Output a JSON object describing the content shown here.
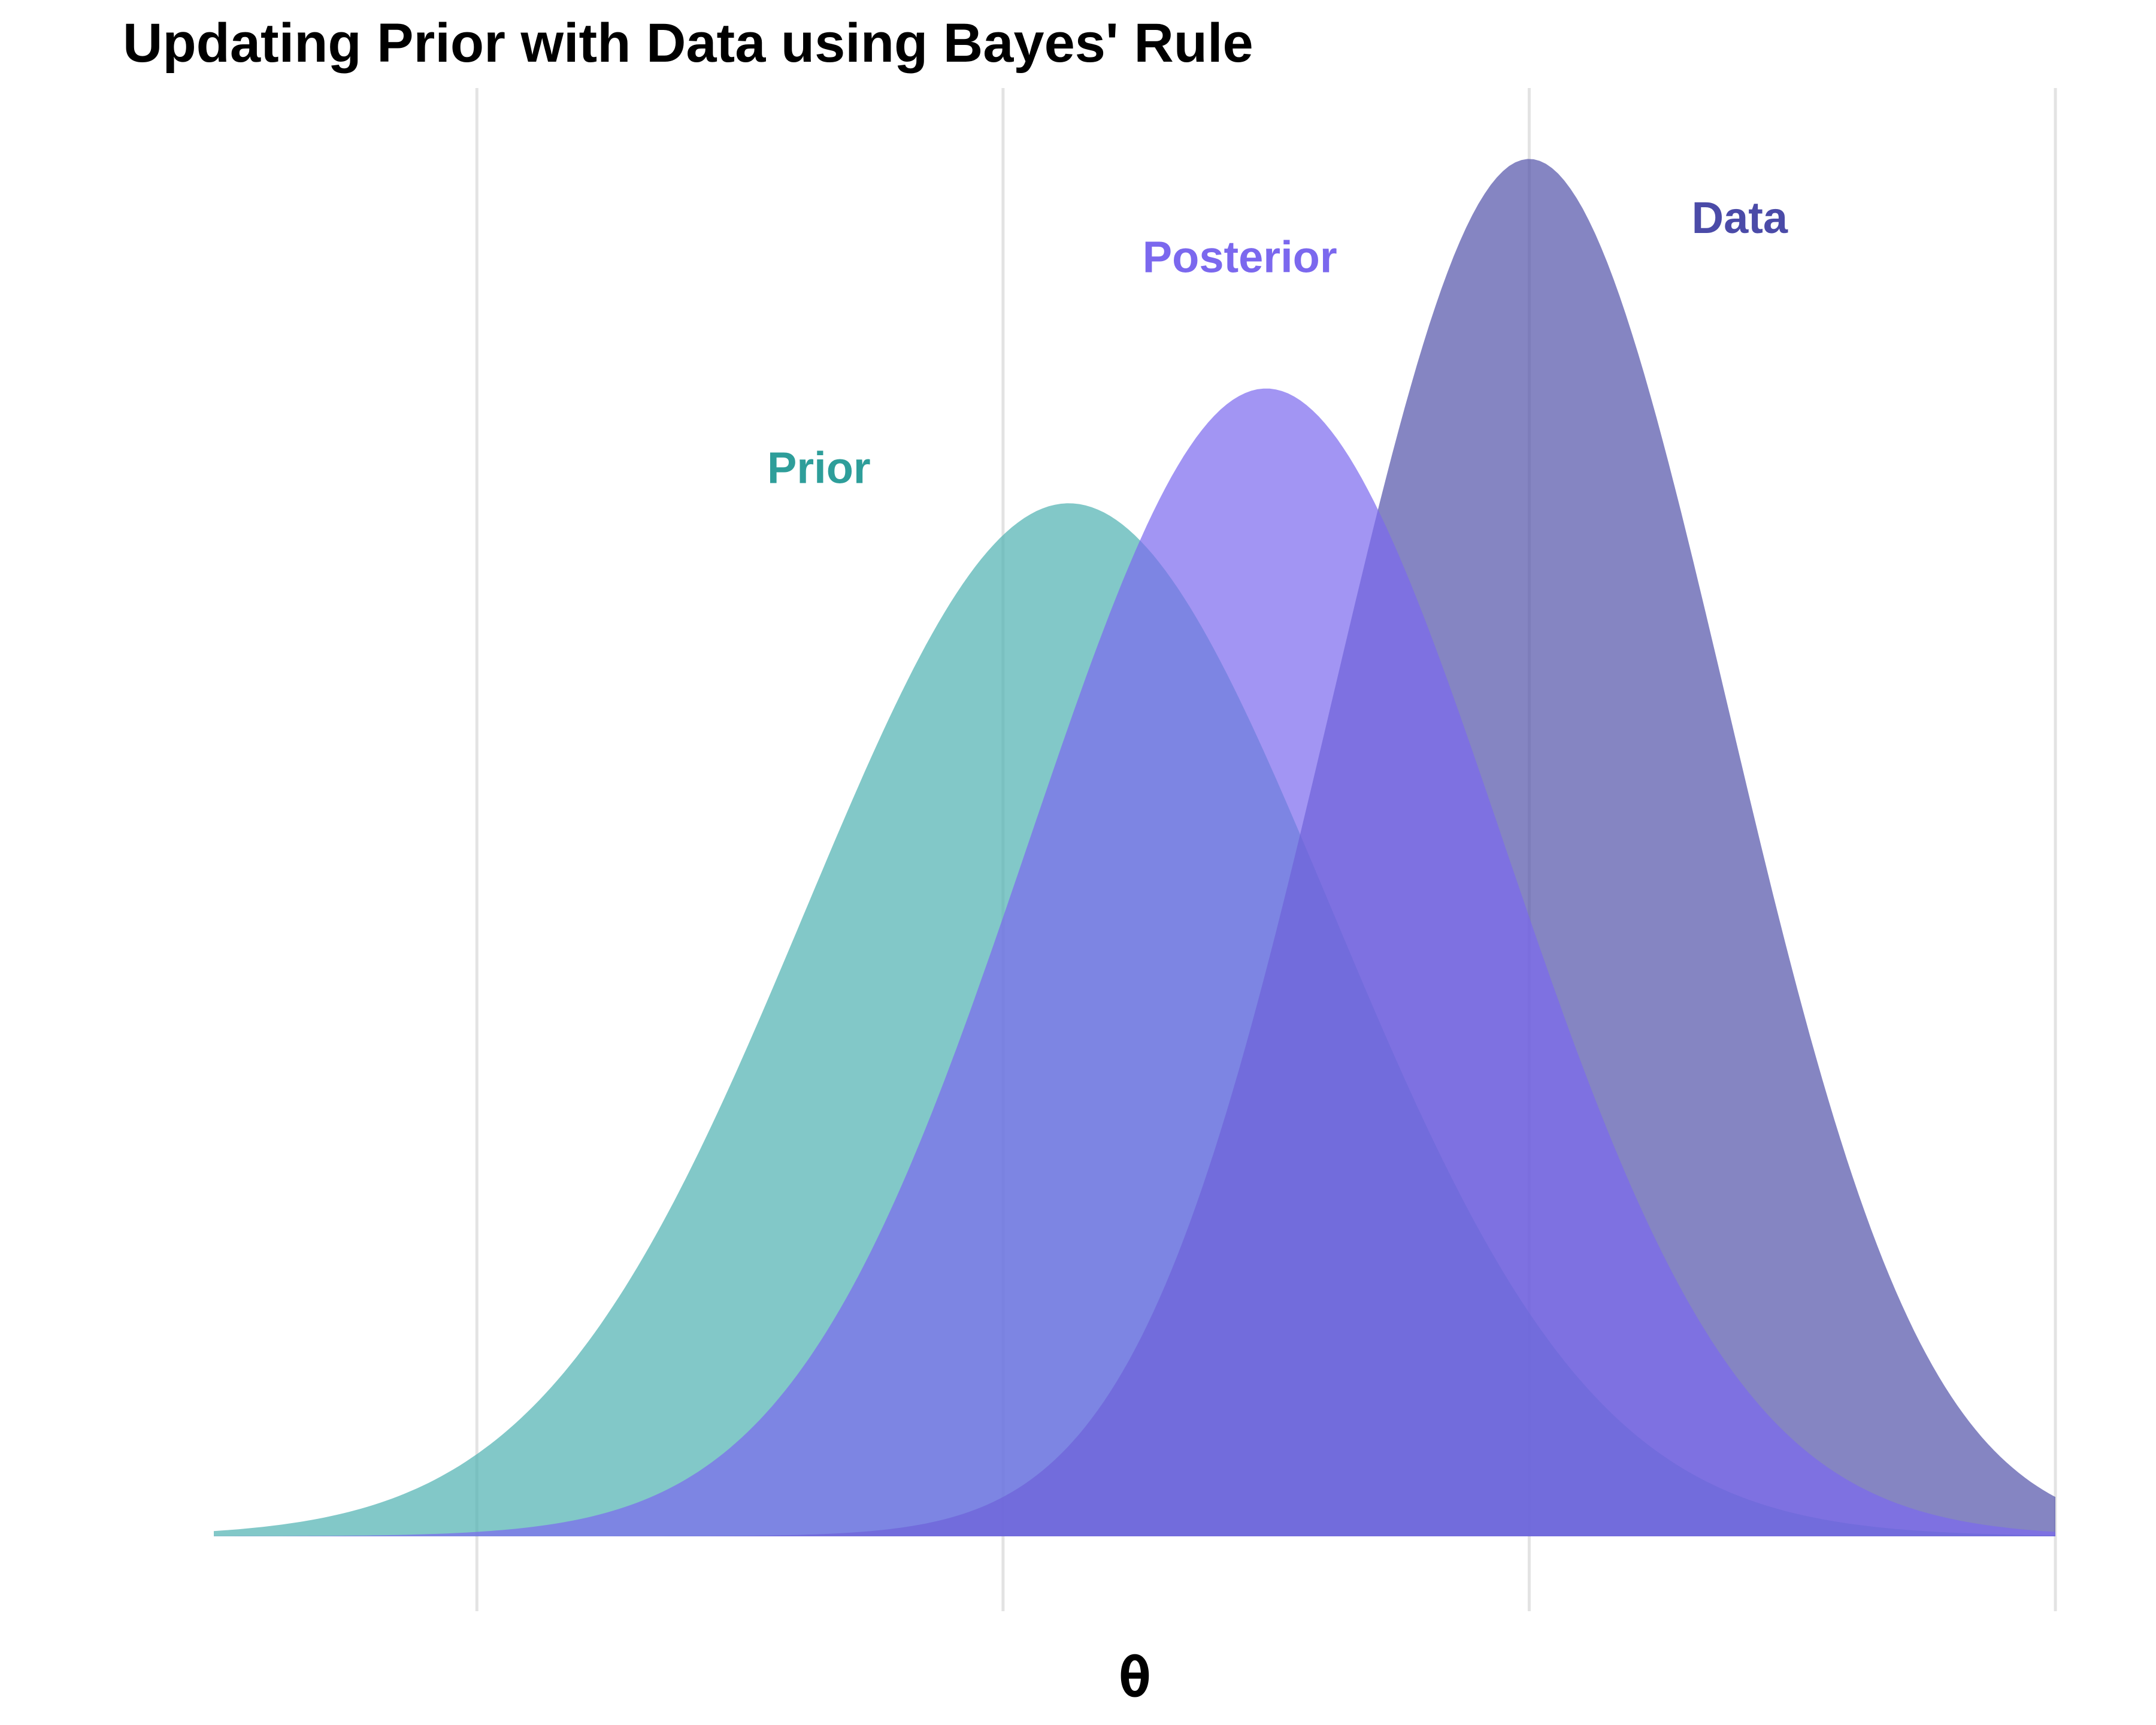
{
  "chart_data": {
    "type": "area",
    "title": "Updating Prior with Data using Bayes' Rule",
    "xlabel": "θ",
    "ylabel": "",
    "xlim": [
      -2.5,
      4.5
    ],
    "ylim": [
      0,
      1.1
    ],
    "x_gridlines": [
      -1.5,
      0.5,
      2.5,
      4.5
    ],
    "tick_labels_shown": false,
    "legend": "none",
    "series": [
      {
        "name": "Prior",
        "distribution": "normal",
        "mean": 0.75,
        "sd": 1.0,
        "peak_density": 0.399,
        "fill_color": "#4DB1B0",
        "label_color": "#2E9E9A",
        "label_x": -0.2,
        "label_y": 0.8
      },
      {
        "name": "Data",
        "distribution": "normal",
        "mean": 2.5,
        "sd": 0.75,
        "peak_density": 0.532,
        "fill_color": "#5151A8",
        "label_color": "#4B4BA8",
        "label_x": 3.3,
        "label_y": 0.99
      },
      {
        "name": "Posterior",
        "distribution": "normal",
        "mean": 1.5,
        "sd": 0.9,
        "peak_density": 0.443,
        "fill_color": "#7B68EE",
        "label_color": "#7B68EE",
        "label_x": 1.4,
        "label_y": 0.96
      }
    ]
  }
}
